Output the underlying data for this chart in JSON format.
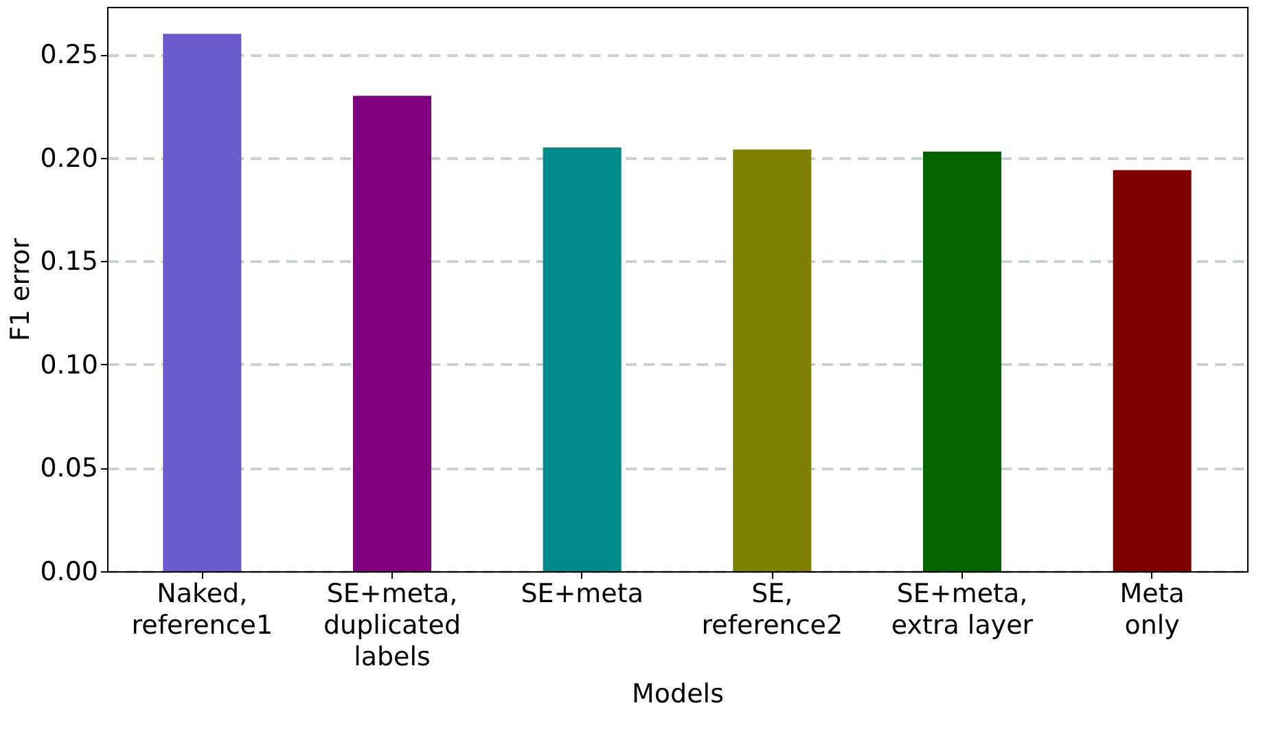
{
  "chart_data": {
    "type": "bar",
    "xlabel": "Models",
    "ylabel": "F1 error",
    "categories": [
      "Naked,\nreference1",
      "SE+meta,\nduplicated\nlabels",
      "SE+meta",
      "SE,\nreference2",
      "SE+meta,\nextra layer",
      "Meta\nonly"
    ],
    "values": [
      0.26,
      0.23,
      0.205,
      0.204,
      0.203,
      0.194
    ],
    "colors": [
      "#6a5acd",
      "#800080",
      "#008b8b",
      "#808000",
      "#006400",
      "#800000"
    ],
    "ylim": [
      0,
      0.273
    ],
    "yticks": [
      {
        "value": 0,
        "label": "0.00"
      },
      {
        "value": 0.05,
        "label": "0.05"
      },
      {
        "value": 0.1,
        "label": "0.10"
      },
      {
        "value": 0.15,
        "label": "0.15"
      },
      {
        "value": 0.2,
        "label": "0.20"
      },
      {
        "value": 0.25,
        "label": "0.25"
      }
    ],
    "grid": "y"
  }
}
